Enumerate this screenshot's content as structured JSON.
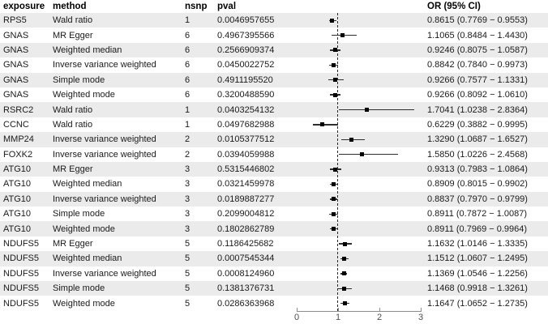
{
  "header": {
    "exposure": "exposure",
    "method": "method",
    "nsnp": "nsnp",
    "pval": "pval",
    "or": "OR (95% CI)"
  },
  "colors": {
    "stripe": "#ebebeb",
    "row_text": "#1a1a1a",
    "marker": "#000000",
    "ci_line": "#2e2e2e",
    "reference_line": "#2b2b2b",
    "axis_line": "#8c8c8c",
    "axis_text": "#4d4d4d"
  },
  "chart_data": {
    "type": "forest",
    "title": "",
    "xlabel": "",
    "axis": {
      "min": 0,
      "max": 3,
      "ticks": [
        0,
        1,
        2,
        3
      ],
      "reference_line": 1,
      "grid": false
    },
    "columns": [
      "exposure",
      "method",
      "nsnp",
      "pval",
      "OR (95% CI)"
    ],
    "rows": [
      {
        "exposure": "RPS5",
        "method": "Wald ratio",
        "nsnp": "1",
        "pval": "0.0046957655",
        "or": 0.8615,
        "ci_low": 0.7769,
        "ci_high": 0.9553,
        "or_label": "0.8615 (0.7769 − 0.9553)"
      },
      {
        "exposure": "GNAS",
        "method": "MR Egger",
        "nsnp": "6",
        "pval": "0.4967395566",
        "or": 1.1065,
        "ci_low": 0.8484,
        "ci_high": 1.443,
        "or_label": "1.1065 (0.8484 − 1.4430)"
      },
      {
        "exposure": "GNAS",
        "method": "Weighted median",
        "nsnp": "6",
        "pval": "0.2566909374",
        "or": 0.9246,
        "ci_low": 0.8075,
        "ci_high": 1.0587,
        "or_label": "0.9246 (0.8075 − 1.0587)"
      },
      {
        "exposure": "GNAS",
        "method": "Inverse variance weighted",
        "nsnp": "6",
        "pval": "0.0450022752",
        "or": 0.8842,
        "ci_low": 0.784,
        "ci_high": 0.9973,
        "or_label": "0.8842 (0.7840 − 0.9973)"
      },
      {
        "exposure": "GNAS",
        "method": "Simple mode",
        "nsnp": "6",
        "pval": "0.4911195520",
        "or": 0.9266,
        "ci_low": 0.7577,
        "ci_high": 1.1331,
        "or_label": "0.9266 (0.7577 − 1.1331)"
      },
      {
        "exposure": "GNAS",
        "method": "Weighted mode",
        "nsnp": "6",
        "pval": "0.3200488590",
        "or": 0.9266,
        "ci_low": 0.8092,
        "ci_high": 1.061,
        "or_label": "0.9266 (0.8092 − 1.0610)"
      },
      {
        "exposure": "RSRC2",
        "method": "Wald ratio",
        "nsnp": "1",
        "pval": "0.0403254132",
        "or": 1.7041,
        "ci_low": 1.0238,
        "ci_high": 2.8364,
        "or_label": "1.7041 (1.0238 − 2.8364)"
      },
      {
        "exposure": "CCNC",
        "method": "Wald ratio",
        "nsnp": "1",
        "pval": "0.0497682988",
        "or": 0.6229,
        "ci_low": 0.3882,
        "ci_high": 0.9995,
        "or_label": "0.6229 (0.3882 − 0.9995)"
      },
      {
        "exposure": "MMP24",
        "method": "Inverse variance weighted",
        "nsnp": "2",
        "pval": "0.0105377512",
        "or": 1.329,
        "ci_low": 1.0687,
        "ci_high": 1.6527,
        "or_label": "1.3290 (1.0687 − 1.6527)"
      },
      {
        "exposure": "FOXK2",
        "method": "Inverse variance weighted",
        "nsnp": "2",
        "pval": "0.0394059988",
        "or": 1.585,
        "ci_low": 1.0226,
        "ci_high": 2.4568,
        "or_label": "1.5850 (1.0226 − 2.4568)"
      },
      {
        "exposure": "ATG10",
        "method": "MR Egger",
        "nsnp": "3",
        "pval": "0.5315446802",
        "or": 0.9313,
        "ci_low": 0.7983,
        "ci_high": 1.0864,
        "or_label": "0.9313 (0.7983 − 1.0864)"
      },
      {
        "exposure": "ATG10",
        "method": "Weighted median",
        "nsnp": "3",
        "pval": "0.0321459978",
        "or": 0.8909,
        "ci_low": 0.8015,
        "ci_high": 0.9902,
        "or_label": "0.8909 (0.8015 − 0.9902)"
      },
      {
        "exposure": "ATG10",
        "method": "Inverse variance weighted",
        "nsnp": "3",
        "pval": "0.0189887277",
        "or": 0.8837,
        "ci_low": 0.797,
        "ci_high": 0.9799,
        "or_label": "0.8837 (0.7970 − 0.9799)"
      },
      {
        "exposure": "ATG10",
        "method": "Simple mode",
        "nsnp": "3",
        "pval": "0.2099004812",
        "or": 0.8911,
        "ci_low": 0.7872,
        "ci_high": 1.0087,
        "or_label": "0.8911 (0.7872 − 1.0087)"
      },
      {
        "exposure": "ATG10",
        "method": "Weighted mode",
        "nsnp": "3",
        "pval": "0.1802862789",
        "or": 0.8911,
        "ci_low": 0.7969,
        "ci_high": 0.9964,
        "or_label": "0.8911 (0.7969 − 0.9964)"
      },
      {
        "exposure": "NDUFS5",
        "method": "MR Egger",
        "nsnp": "5",
        "pval": "0.1186425682",
        "or": 1.1632,
        "ci_low": 1.0146,
        "ci_high": 1.3335,
        "or_label": "1.1632 (1.0146 − 1.3335)"
      },
      {
        "exposure": "NDUFS5",
        "method": "Weighted median",
        "nsnp": "5",
        "pval": "0.0007545344",
        "or": 1.1512,
        "ci_low": 1.0607,
        "ci_high": 1.2495,
        "or_label": "1.1512 (1.0607 − 1.2495)"
      },
      {
        "exposure": "NDUFS5",
        "method": "Inverse variance weighted",
        "nsnp": "5",
        "pval": "0.0008124960",
        "or": 1.1369,
        "ci_low": 1.0546,
        "ci_high": 1.2256,
        "or_label": "1.1369 (1.0546 − 1.2256)"
      },
      {
        "exposure": "NDUFS5",
        "method": "Simple mode",
        "nsnp": "5",
        "pval": "0.1381376731",
        "or": 1.1468,
        "ci_low": 0.9918,
        "ci_high": 1.3261,
        "or_label": "1.1468 (0.9918 − 1.3261)"
      },
      {
        "exposure": "NDUFS5",
        "method": "Weighted mode",
        "nsnp": "5",
        "pval": "0.0286363968",
        "or": 1.1647,
        "ci_low": 1.0652,
        "ci_high": 1.2735,
        "or_label": "1.1647 (1.0652 − 1.2735)"
      }
    ]
  }
}
